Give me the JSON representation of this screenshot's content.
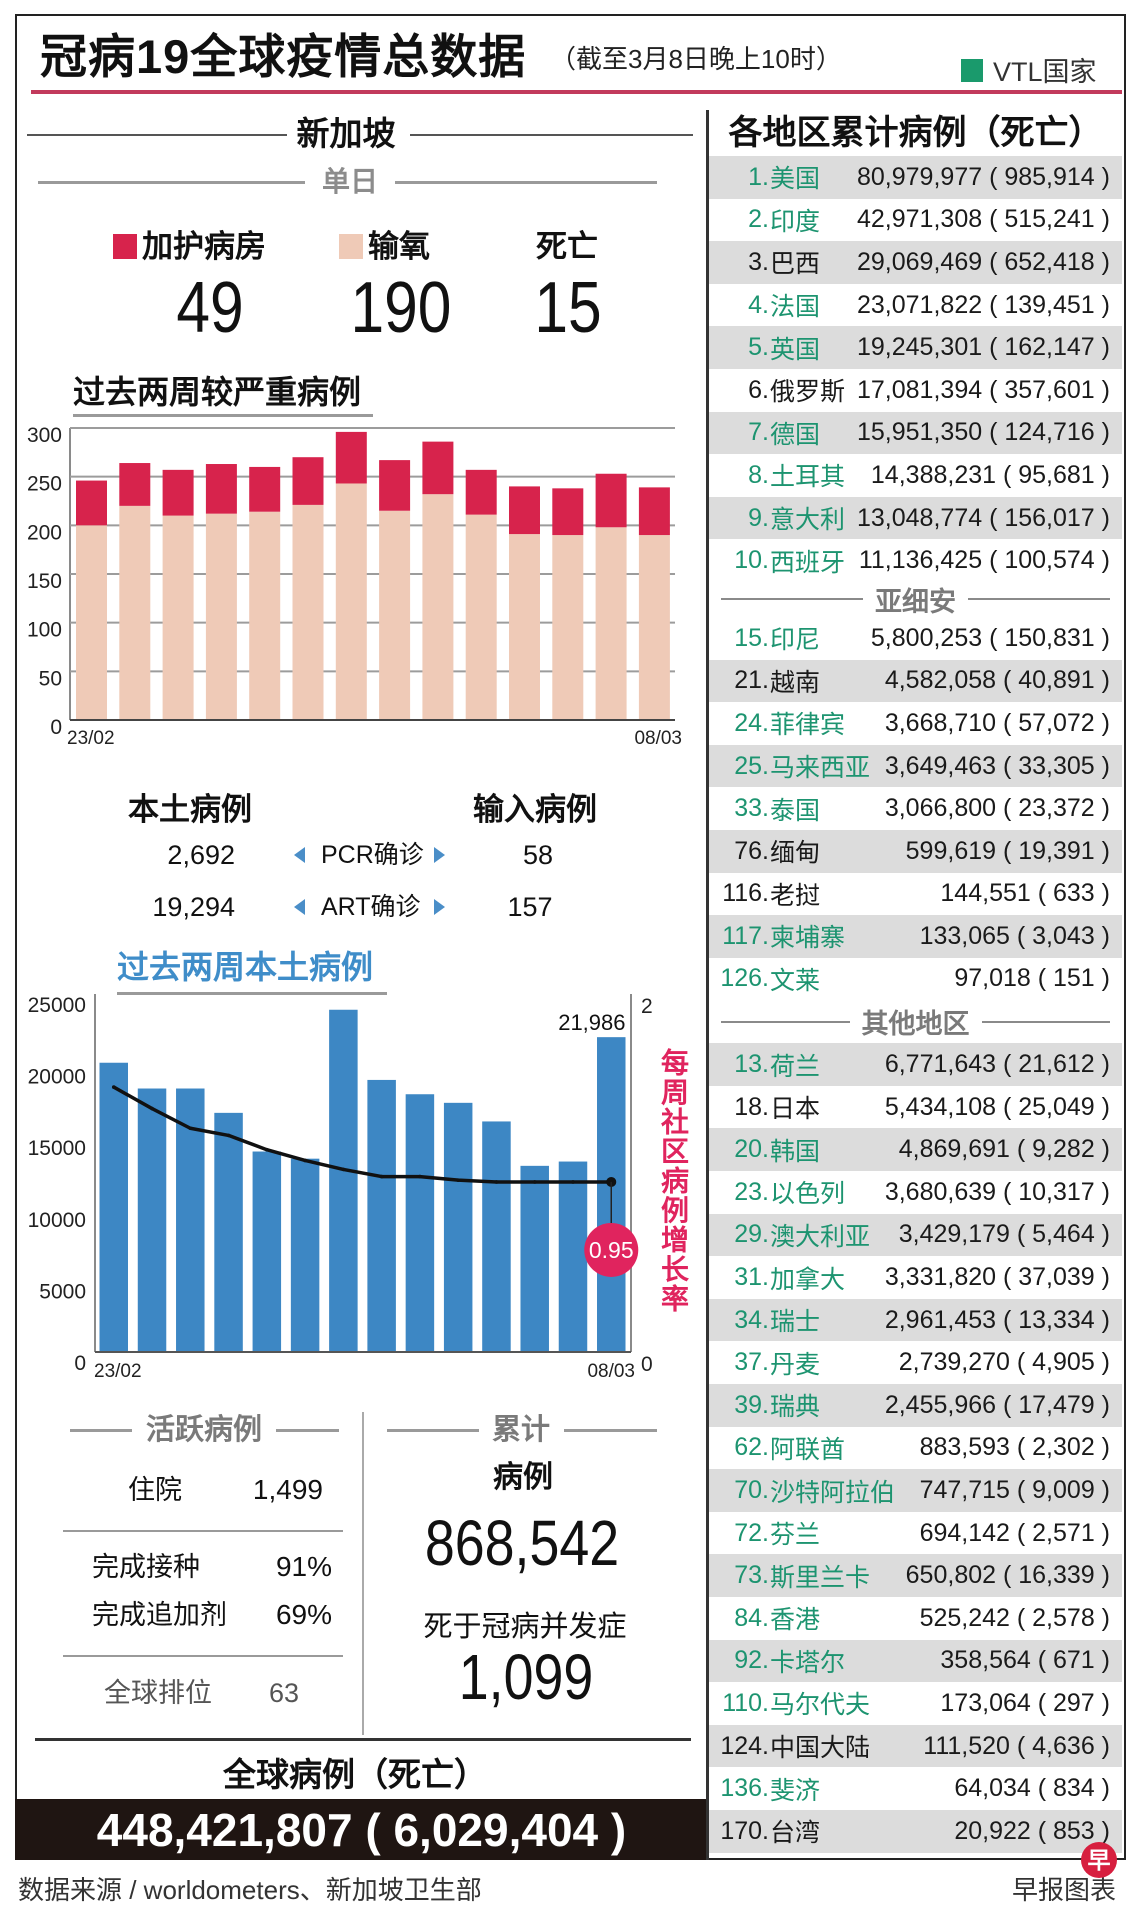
{
  "header": {
    "title": "冠病19全球疫情总数据",
    "subtitle": "（截至3月8日晚上10时）",
    "legend": {
      "label": "VTL国家",
      "color": "#1a9a6c"
    }
  },
  "singapore": {
    "section_title": "新加坡",
    "daily": {
      "label": "单日",
      "icu": {
        "label": "加护病房",
        "value": "49",
        "color": "#d7234c"
      },
      "oxygen": {
        "label": "输氧",
        "value": "190",
        "color": "#efcab7"
      },
      "deaths": {
        "label": "死亡",
        "value": "15"
      }
    },
    "cases": {
      "local_label": "本土病例",
      "imported_label": "输入病例",
      "rows": [
        {
          "local": "2,692",
          "method": "PCR确诊",
          "imported": "58"
        },
        {
          "local": "19,294",
          "method": "ART确诊",
          "imported": "157"
        }
      ]
    },
    "active": {
      "title": "活跃病例",
      "hospitalised_label": "住院",
      "hospitalised": "1,499",
      "vaccinated_label": "完成接种",
      "vaccinated": "91%",
      "booster_label": "完成追加剂",
      "booster": "69%",
      "rank_label": "全球排位",
      "rank": "63"
    },
    "cumulative": {
      "title": "累计",
      "cases_label": "病例",
      "cases": "868,542",
      "deaths_label": "死于冠病并发症",
      "deaths": "1,099"
    }
  },
  "global": {
    "label": "全球病例（死亡）",
    "value": "448,421,807 ( 6,029,404 )"
  },
  "regions": {
    "title": "各地区累计病例（死亡）",
    "vtl_color": "#1d9470",
    "groups": [
      {
        "label": "",
        "rows": [
          {
            "rank": 1,
            "name": "美国",
            "cases": "80,979,977",
            "deaths": "985,914",
            "vtl": true
          },
          {
            "rank": 2,
            "name": "印度",
            "cases": "42,971,308",
            "deaths": "515,241",
            "vtl": true
          },
          {
            "rank": 3,
            "name": "巴西",
            "cases": "29,069,469",
            "deaths": "652,418",
            "vtl": false
          },
          {
            "rank": 4,
            "name": "法国",
            "cases": "23,071,822",
            "deaths": "139,451",
            "vtl": true
          },
          {
            "rank": 5,
            "name": "英国",
            "cases": "19,245,301",
            "deaths": "162,147",
            "vtl": true
          },
          {
            "rank": 6,
            "name": "俄罗斯",
            "cases": "17,081,394",
            "deaths": "357,601",
            "vtl": false
          },
          {
            "rank": 7,
            "name": "德国",
            "cases": "15,951,350",
            "deaths": "124,716",
            "vtl": true
          },
          {
            "rank": 8,
            "name": "土耳其",
            "cases": "14,388,231",
            "deaths": "95,681",
            "vtl": true
          },
          {
            "rank": 9,
            "name": "意大利",
            "cases": "13,048,774",
            "deaths": "156,017",
            "vtl": true
          },
          {
            "rank": 10,
            "name": "西班牙",
            "cases": "11,136,425",
            "deaths": "100,574",
            "vtl": true
          }
        ]
      },
      {
        "label": "亚细安",
        "rows": [
          {
            "rank": 15,
            "name": "印尼",
            "cases": "5,800,253",
            "deaths": "150,831",
            "vtl": true
          },
          {
            "rank": 21,
            "name": "越南",
            "cases": "4,582,058",
            "deaths": "40,891",
            "vtl": false
          },
          {
            "rank": 24,
            "name": "菲律宾",
            "cases": "3,668,710",
            "deaths": "57,072",
            "vtl": true
          },
          {
            "rank": 25,
            "name": "马来西亚",
            "cases": "3,649,463",
            "deaths": "33,305",
            "vtl": true
          },
          {
            "rank": 33,
            "name": "泰国",
            "cases": "3,066,800",
            "deaths": "23,372",
            "vtl": true
          },
          {
            "rank": 76,
            "name": "缅甸",
            "cases": "599,619",
            "deaths": "19,391",
            "vtl": false
          },
          {
            "rank": 116,
            "name": "老挝",
            "cases": "144,551",
            "deaths": "633",
            "vtl": false
          },
          {
            "rank": 117,
            "name": "柬埔寨",
            "cases": "133,065",
            "deaths": "3,043",
            "vtl": true
          },
          {
            "rank": 126,
            "name": "文莱",
            "cases": "97,018",
            "deaths": "151",
            "vtl": true
          }
        ]
      },
      {
        "label": "其他地区",
        "rows": [
          {
            "rank": 13,
            "name": "荷兰",
            "cases": "6,771,643",
            "deaths": "21,612",
            "vtl": true
          },
          {
            "rank": 18,
            "name": "日本",
            "cases": "5,434,108",
            "deaths": "25,049",
            "vtl": false
          },
          {
            "rank": 20,
            "name": "韩国",
            "cases": "4,869,691",
            "deaths": "9,282",
            "vtl": true
          },
          {
            "rank": 23,
            "name": "以色列",
            "cases": "3,680,639",
            "deaths": "10,317",
            "vtl": true
          },
          {
            "rank": 29,
            "name": "澳大利亚",
            "cases": "3,429,179",
            "deaths": "5,464",
            "vtl": true
          },
          {
            "rank": 31,
            "name": "加拿大",
            "cases": "3,331,820",
            "deaths": "37,039",
            "vtl": true
          },
          {
            "rank": 34,
            "name": "瑞士",
            "cases": "2,961,453",
            "deaths": "13,334",
            "vtl": true
          },
          {
            "rank": 37,
            "name": "丹麦",
            "cases": "2,739,270",
            "deaths": "4,905",
            "vtl": true
          },
          {
            "rank": 39,
            "name": "瑞典",
            "cases": "2,455,966",
            "deaths": "17,479",
            "vtl": true
          },
          {
            "rank": 62,
            "name": "阿联酋",
            "cases": "883,593",
            "deaths": "2,302",
            "vtl": true
          },
          {
            "rank": 70,
            "name": "沙特阿拉伯",
            "cases": "747,715",
            "deaths": "9,009",
            "vtl": true
          },
          {
            "rank": 72,
            "name": "芬兰",
            "cases": "694,142",
            "deaths": "2,571",
            "vtl": true
          },
          {
            "rank": 73,
            "name": "斯里兰卡",
            "cases": "650,802",
            "deaths": "16,339",
            "vtl": true
          },
          {
            "rank": 84,
            "name": "香港",
            "cases": "525,242",
            "deaths": "2,578",
            "vtl": true
          },
          {
            "rank": 92,
            "name": "卡塔尔",
            "cases": "358,564",
            "deaths": "671",
            "vtl": true
          },
          {
            "rank": 110,
            "name": "马尔代夫",
            "cases": "173,064",
            "deaths": "297",
            "vtl": true
          },
          {
            "rank": 124,
            "name": "中国大陆",
            "cases": "111,520",
            "deaths": "4,636",
            "vtl": false
          },
          {
            "rank": 136,
            "name": "斐济",
            "cases": "64,034",
            "deaths": "834",
            "vtl": true
          },
          {
            "rank": 170,
            "name": "台湾",
            "cases": "20,922",
            "deaths": "853",
            "vtl": false
          }
        ]
      }
    ]
  },
  "footer": {
    "source": "数据来源 / worldometers、新加坡卫生部",
    "credit": "早报图表",
    "logo_char": "早"
  },
  "chart_data": [
    {
      "type": "bar",
      "stacked": true,
      "title": "过去两周较严重病例",
      "categories": [
        "23/02",
        "24/02",
        "25/02",
        "26/02",
        "27/02",
        "28/02",
        "01/03",
        "02/03",
        "03/03",
        "04/03",
        "05/03",
        "06/03",
        "07/03",
        "08/03"
      ],
      "x_tick_labels": [
        "23/02",
        "08/03"
      ],
      "series": [
        {
          "name": "输氧",
          "color": "#efcab7",
          "values": [
            200,
            220,
            210,
            212,
            214,
            221,
            243,
            215,
            232,
            211,
            191,
            190,
            198,
            190
          ]
        },
        {
          "name": "加护病房",
          "color": "#d7234c",
          "values": [
            46,
            44,
            47,
            51,
            46,
            49,
            53,
            52,
            54,
            46,
            49,
            48,
            55,
            49
          ]
        }
      ],
      "xlabel": "",
      "ylabel": "",
      "ylim": [
        0,
        300
      ],
      "yticks": [
        0,
        50,
        100,
        150,
        200,
        250,
        300
      ],
      "grid": true,
      "legend": "top"
    },
    {
      "type": "bar",
      "title": "过去两周本土病例",
      "categories": [
        "23/02",
        "24/02",
        "25/02",
        "26/02",
        "27/02",
        "28/02",
        "01/03",
        "02/03",
        "03/03",
        "04/03",
        "05/03",
        "06/03",
        "07/03",
        "08/03"
      ],
      "x_tick_labels": [
        "23/02",
        "08/03"
      ],
      "series": [
        {
          "name": "本土病例",
          "type": "bar",
          "axis": "left",
          "color": "#3d87c4",
          "values": [
            20200,
            18400,
            18400,
            16700,
            14000,
            13500,
            23900,
            19000,
            18000,
            17400,
            16100,
            13000,
            13300,
            21986
          ]
        },
        {
          "name": "每周社区病例增长率",
          "type": "line",
          "axis": "right",
          "color": "#111111",
          "values": [
            1.48,
            1.36,
            1.25,
            1.21,
            1.13,
            1.07,
            1.02,
            0.98,
            0.98,
            0.96,
            0.95,
            0.95,
            0.95,
            0.95
          ]
        }
      ],
      "xlabel": "",
      "ylabel": "",
      "ylim": [
        0,
        25000
      ],
      "yticks": [
        0,
        5000,
        10000,
        15000,
        20000,
        25000
      ],
      "y2lim": [
        0,
        2
      ],
      "y2ticks": [
        0,
        2
      ],
      "y2label": "每周社区病例增长率",
      "annotations": [
        {
          "series": 0,
          "index": 13,
          "text": "21,986"
        },
        {
          "series": 1,
          "index": 13,
          "text": "0.95",
          "style": "badge",
          "color": "#e0245e"
        }
      ],
      "grid": false
    }
  ]
}
